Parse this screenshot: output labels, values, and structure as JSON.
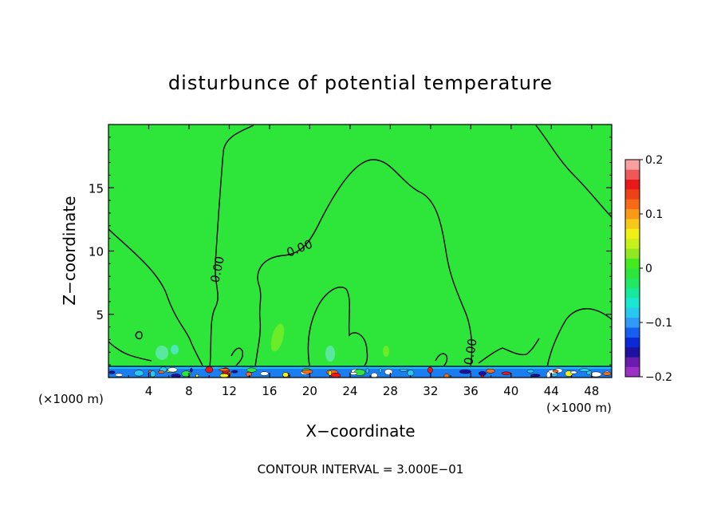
{
  "chart_data": {
    "type": "heatmap",
    "title": "disturbunce of potential temperature",
    "xlabel": "X−coordinate",
    "ylabel": "Z−coordinate",
    "x_unit_label": "(×1000 m)",
    "x_unit_label_right": "(×1000 m)",
    "xlim": [
      0,
      50
    ],
    "ylim": [
      0,
      20
    ],
    "xticks": [
      4,
      8,
      12,
      16,
      20,
      24,
      28,
      32,
      36,
      40,
      44,
      48
    ],
    "yticks": [
      5,
      10,
      15
    ],
    "contour_label_value": "0.00",
    "colorbar": {
      "min": -0.2,
      "max": 0.2,
      "ticks": [
        "0.2",
        "0.1",
        "0",
        "−0.1",
        "−0.2"
      ],
      "tick_values": [
        0.2,
        0.1,
        0,
        -0.1,
        -0.2
      ],
      "colors": [
        "#9b30c8",
        "#6a1bb0",
        "#1e10a0",
        "#0a2ad8",
        "#1560f0",
        "#2f9af8",
        "#28c8f0",
        "#18e8d0",
        "#16e89c",
        "#20e860",
        "#2ee63a",
        "#42ea1e",
        "#90e820",
        "#c8f01a",
        "#f0f014",
        "#f8c818",
        "#f89a18",
        "#f86a18",
        "#f04018",
        "#e81818",
        "#f05858",
        "#f8a0a0"
      ]
    },
    "annotation": "CONTOUR INTERVAL = 3.000E−01",
    "grid": false
  }
}
